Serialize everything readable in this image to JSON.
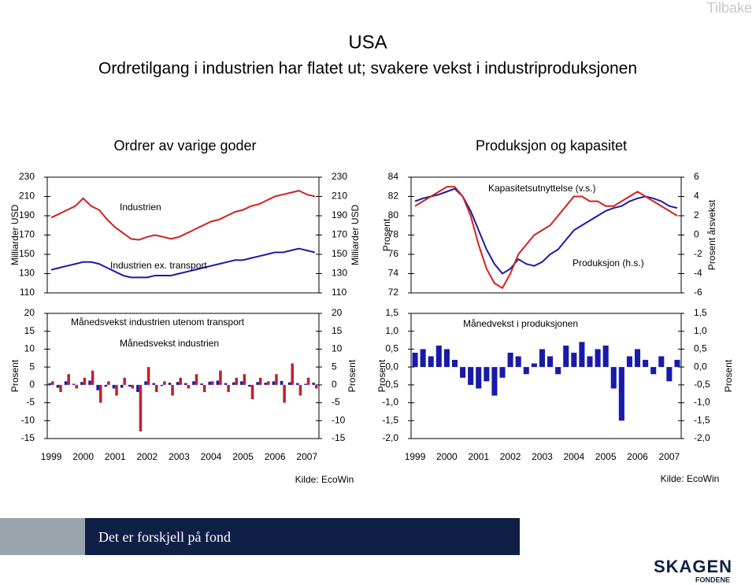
{
  "nav": {
    "back": "Tilbake"
  },
  "header": {
    "title": "USA",
    "subtitle": "Ordretilgang i industrien har flatet ut; svakere vekst i industriproduksjonen"
  },
  "sections": [
    {
      "title": "Ordrer av varige goder",
      "source": "Kilde: EcoWin"
    },
    {
      "title": "Produksjon og kapasitet",
      "source": "Kilde: EcoWin"
    }
  ],
  "chart_data": [
    {
      "type": "line",
      "y_label": "Milliarder USD",
      "y2_label": "Milliarder USD",
      "categories": [
        null,
        null,
        null,
        null,
        null,
        null,
        null,
        null,
        null,
        null,
        null,
        null,
        null,
        null,
        null,
        null,
        null,
        null,
        null,
        null,
        null,
        null,
        null,
        null,
        null,
        null,
        null,
        null,
        null,
        null,
        null,
        null,
        null,
        null
      ],
      "ylim": [
        110,
        230
      ],
      "yticks": [
        110,
        130,
        150,
        170,
        190,
        210,
        230
      ],
      "y2lim": [
        110,
        230
      ],
      "y2ticks": [
        110,
        130,
        150,
        170,
        190,
        210,
        230
      ],
      "series": [
        {
          "name": "Industrien",
          "color": "#d42020",
          "values": [
            188,
            192,
            196,
            200,
            208,
            200,
            196,
            186,
            178,
            172,
            166,
            165,
            168,
            170,
            168,
            166,
            168,
            172,
            176,
            180,
            184,
            186,
            190,
            194,
            196,
            200,
            202,
            206,
            210,
            212,
            214,
            216,
            212,
            210
          ]
        },
        {
          "name": "Industrien ex. transport",
          "color": "#1a1aa8",
          "values": [
            134,
            136,
            138,
            140,
            142,
            142,
            140,
            136,
            132,
            128,
            126,
            126,
            126,
            128,
            128,
            128,
            130,
            132,
            134,
            136,
            138,
            140,
            142,
            144,
            144,
            146,
            148,
            150,
            152,
            152,
            154,
            156,
            154,
            152
          ]
        }
      ]
    },
    {
      "type": "line",
      "y_label": "Prosent",
      "y2_label": "Prosent årsvekst",
      "categories": [
        null,
        null,
        null,
        null,
        null,
        null,
        null,
        null,
        null,
        null,
        null,
        null,
        null,
        null,
        null,
        null,
        null,
        null,
        null,
        null,
        null,
        null,
        null,
        null,
        null,
        null,
        null,
        null,
        null,
        null,
        null,
        null,
        null,
        null
      ],
      "ylim": [
        72,
        84
      ],
      "yticks": [
        72,
        74,
        76,
        78,
        80,
        82,
        84
      ],
      "y2lim": [
        -6,
        6
      ],
      "y2ticks": [
        -6,
        -4,
        -2,
        0,
        2,
        4,
        6
      ],
      "series": [
        {
          "name": "Kapasitetsutnyttelse (v.s.)",
          "color": "#1a1aa8",
          "values": [
            81.5,
            81.8,
            82,
            82.2,
            82.5,
            82.8,
            82,
            80.5,
            78.5,
            76.5,
            75,
            74,
            74.5,
            75.5,
            75,
            74.8,
            75.2,
            76,
            76.5,
            77.5,
            78.5,
            79,
            79.5,
            80,
            80.5,
            80.8,
            81,
            81.5,
            81.8,
            82,
            81.8,
            81.5,
            81,
            80.8
          ]
        },
        {
          "name": "Produksjon (h.s.)",
          "color": "#d42020",
          "axis": "y2",
          "values": [
            3,
            3.5,
            4,
            4.5,
            5,
            5,
            4,
            2,
            -1,
            -3.5,
            -5,
            -5.5,
            -4,
            -2,
            -1,
            0,
            0.5,
            1,
            2,
            3,
            4,
            4,
            3.5,
            3.5,
            3,
            3,
            3.5,
            4,
            4.5,
            4,
            3.5,
            3,
            2.5,
            2
          ]
        }
      ]
    },
    {
      "type": "bar",
      "y_label": "Prosent",
      "y2_label": "Prosent",
      "categories": [
        "1999",
        null,
        null,
        null,
        "2000",
        null,
        null,
        null,
        "2001",
        null,
        null,
        null,
        "2002",
        null,
        null,
        null,
        "2003",
        null,
        null,
        null,
        "2004",
        null,
        null,
        null,
        "2005",
        null,
        null,
        null,
        "2006",
        null,
        null,
        null,
        "2007",
        null
      ],
      "ylim": [
        -15,
        20
      ],
      "yticks": [
        -15,
        -10,
        -5,
        0,
        5,
        10,
        15,
        20
      ],
      "y2lim": [
        -15,
        20
      ],
      "y2ticks": [
        -15,
        -10,
        -5,
        0,
        5,
        10,
        15,
        20
      ],
      "series": [
        {
          "name": "Månedsvekst industrien utenom transport",
          "color": "#1a1aa8",
          "values": [
            0.5,
            -0.8,
            1,
            0.3,
            0.8,
            1.2,
            -1.5,
            -0.5,
            -1,
            -0.8,
            -0.5,
            -2,
            1,
            0.5,
            -0.3,
            0.6,
            0.8,
            0.5,
            1,
            0.4,
            0.9,
            1.2,
            0.5,
            0.7,
            1,
            -0.5,
            0.8,
            0.6,
            1,
            1.1,
            0.7,
            0.5,
            0.3,
            0.6
          ]
        },
        {
          "name": "Månedsvekst industrien",
          "color": "#c02030",
          "values": [
            1,
            -2,
            3,
            -1,
            2,
            4,
            -5,
            1,
            -3,
            2,
            -1,
            -13,
            5,
            -2,
            1,
            -3,
            2,
            -1,
            3,
            -2,
            1,
            4,
            -2,
            2,
            3,
            -4,
            2,
            1,
            3,
            -5,
            6,
            -3,
            2,
            -1
          ]
        }
      ]
    },
    {
      "type": "bar",
      "y_label": "Prosent",
      "y2_label": "Prosent",
      "categories": [
        "1999",
        null,
        null,
        null,
        "2000",
        null,
        null,
        null,
        "2001",
        null,
        null,
        null,
        "2002",
        null,
        null,
        null,
        "2003",
        null,
        null,
        null,
        "2004",
        null,
        null,
        null,
        "2005",
        null,
        null,
        null,
        "2006",
        null,
        null,
        null,
        "2007",
        null
      ],
      "ylim": [
        -2,
        1.5
      ],
      "yticks": [
        {
          "value": -2,
          "label": "-2,0"
        },
        {
          "value": -1.5,
          "label": "-1,5"
        },
        {
          "value": -1,
          "label": "-1,0"
        },
        {
          "value": -0.5,
          "label": "-0,5"
        },
        {
          "value": 0,
          "label": "0,0"
        },
        {
          "value": 0.5,
          "label": "0,5"
        },
        {
          "value": 1,
          "label": "1,0"
        },
        {
          "value": 1.5,
          "label": "1,5"
        }
      ],
      "y2lim": [
        -2,
        1.5
      ],
      "y2ticks": [
        {
          "value": -2,
          "label": "-2,0"
        },
        {
          "value": -1.5,
          "label": "-1,5"
        },
        {
          "value": -1,
          "label": "-1,0"
        },
        {
          "value": -0.5,
          "label": "-0,5"
        },
        {
          "value": 0,
          "label": "0,0"
        },
        {
          "value": 0.5,
          "label": "0,5"
        },
        {
          "value": 1,
          "label": "1,0"
        },
        {
          "value": 1.5,
          "label": "1,5"
        }
      ],
      "series": [
        {
          "name": "Månedvekst i produksjonen",
          "color": "#1a1aa8",
          "values": [
            0.4,
            0.5,
            0.3,
            0.6,
            0.5,
            0.2,
            -0.3,
            -0.5,
            -0.6,
            -0.4,
            -0.8,
            -0.3,
            0.4,
            0.3,
            -0.2,
            0.1,
            0.5,
            0.3,
            -0.2,
            0.6,
            0.4,
            0.7,
            0.3,
            0.5,
            0.6,
            -0.6,
            -1.5,
            0.3,
            0.5,
            0.2,
            -0.2,
            0.3,
            -0.4,
            0.2
          ]
        }
      ]
    }
  ],
  "footer": {
    "slogan": "Det er forskjell på fond",
    "logo": "SKAGEN",
    "logo_sub": "FONDENE"
  }
}
